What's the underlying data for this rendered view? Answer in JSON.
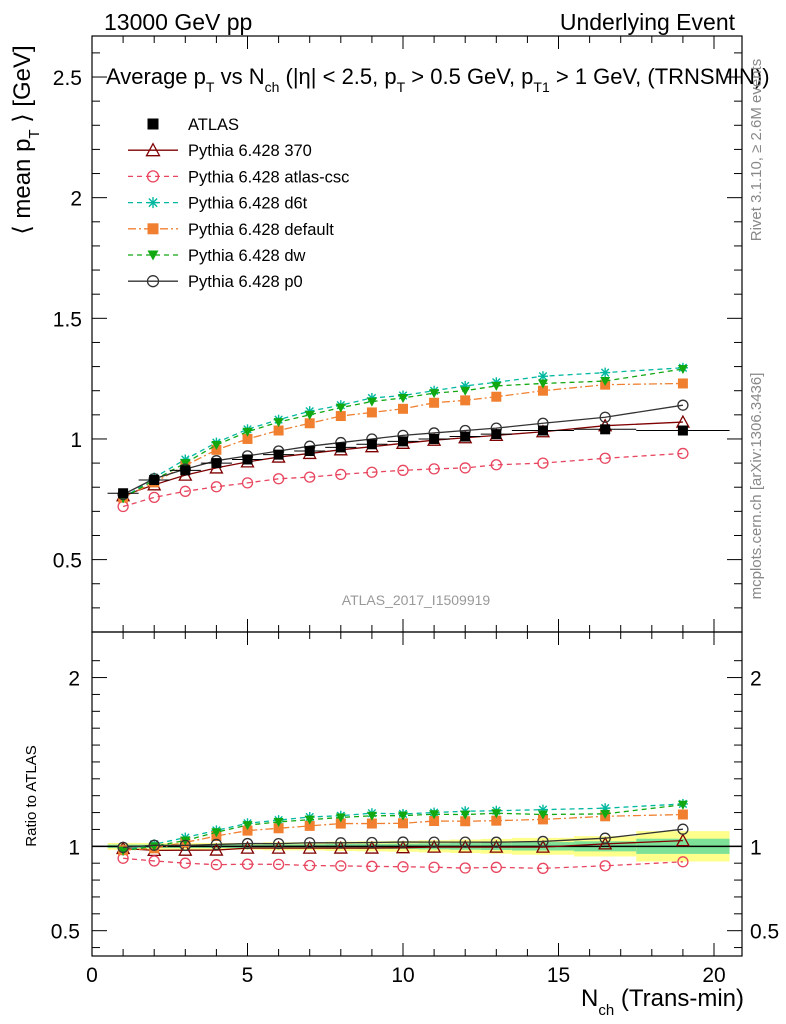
{
  "header": {
    "left": "13000 GeV pp",
    "right": "Underlying Event"
  },
  "side_labels": {
    "rivet": "Rivet 3.1.10, ≥ 2.6M events",
    "mcplots": "mcplots.cern.ch [arXiv:1306.3436]"
  },
  "chart_data": {
    "type": "line",
    "title": {
      "parts": [
        "Average p",
        "T",
        " vs N",
        "ch",
        " (|η| < 2.5, p",
        "T",
        " > 0.5 GeV, p",
        "T1",
        " > 1 GeV, (TRNSMIN))"
      ]
    },
    "watermark": "ATLAS_2017_I1509919",
    "ylabel": {
      "parts": [
        "⟨ mean p",
        "T",
        " ⟩ [GeV]"
      ]
    },
    "xlabel": {
      "parts": [
        "N",
        "ch",
        " (Trans-min)"
      ]
    },
    "ratio_ylabel": "Ratio to ATLAS",
    "xlim": [
      0,
      20.9
    ],
    "ylim": [
      0.2,
      2.67
    ],
    "ratio_ylim": [
      0.35,
      2.27
    ],
    "x_ticks": [
      0,
      5,
      10,
      15,
      20
    ],
    "x_tick_labels": [
      "0",
      "5",
      "10",
      "15",
      "20"
    ],
    "y_ticks": [
      0.5,
      1,
      1.5,
      2,
      2.5
    ],
    "y_tick_labels": [
      "0.5",
      "1",
      "1.5",
      "2",
      "2.5"
    ],
    "ratio_ticks": [
      0.5,
      1,
      2
    ],
    "ratio_tick_labels": [
      "0.5",
      "1",
      "2"
    ],
    "x": [
      1,
      2,
      3,
      4,
      5,
      6,
      7,
      8,
      9,
      10,
      11,
      12,
      13,
      14.5,
      16.5,
      19
    ],
    "x_err": [
      0.5,
      0.5,
      0.5,
      0.5,
      0.5,
      0.5,
      0.5,
      0.5,
      0.5,
      0.5,
      0.5,
      0.5,
      0.5,
      1,
      1,
      1.5
    ],
    "data": {
      "name": "ATLAS",
      "color": "#000000",
      "values": [
        0.775,
        0.83,
        0.87,
        0.9,
        0.915,
        0.935,
        0.95,
        0.965,
        0.978,
        0.99,
        1.0,
        1.01,
        1.02,
        1.035,
        1.04,
        1.035
      ],
      "ratio_band": [
        0.01,
        0.01,
        0.01,
        0.01,
        0.01,
        0.012,
        0.012,
        0.014,
        0.015,
        0.016,
        0.018,
        0.02,
        0.022,
        0.025,
        0.03,
        0.045
      ]
    },
    "series": [
      {
        "name": "Pythia 6.428 370",
        "color": "#7f0000",
        "dash": "",
        "marker": "triangle-open",
        "values": [
          0.765,
          0.81,
          0.85,
          0.88,
          0.905,
          0.925,
          0.94,
          0.955,
          0.968,
          0.982,
          0.995,
          1.005,
          1.015,
          1.03,
          1.055,
          1.07
        ]
      },
      {
        "name": "Pythia 6.428 atlas-csc",
        "color": "#e8455e",
        "dash": "5,4",
        "marker": "circle-open",
        "values": [
          0.72,
          0.758,
          0.783,
          0.802,
          0.818,
          0.835,
          0.842,
          0.853,
          0.862,
          0.87,
          0.876,
          0.88,
          0.893,
          0.9,
          0.92,
          0.94
        ]
      },
      {
        "name": "Pythia 6.428 d6t",
        "color": "#00b8a0",
        "dash": "5,4",
        "marker": "star",
        "values": [
          0.755,
          0.84,
          0.915,
          0.985,
          1.04,
          1.08,
          1.115,
          1.14,
          1.17,
          1.18,
          1.2,
          1.22,
          1.235,
          1.26,
          1.275,
          1.295
        ]
      },
      {
        "name": "Pythia 6.428 default",
        "color": "#f08030",
        "dash": "8,3,2,3",
        "marker": "square",
        "values": [
          0.757,
          0.82,
          0.89,
          0.955,
          1.0,
          1.035,
          1.065,
          1.095,
          1.11,
          1.125,
          1.15,
          1.16,
          1.175,
          1.2,
          1.225,
          1.23
        ]
      },
      {
        "name": "Pythia 6.428 dw",
        "color": "#11a811",
        "dash": "5,4",
        "marker": "triangle-down",
        "values": [
          0.755,
          0.83,
          0.9,
          0.975,
          1.03,
          1.07,
          1.1,
          1.13,
          1.155,
          1.17,
          1.19,
          1.2,
          1.22,
          1.23,
          1.24,
          1.29
        ]
      },
      {
        "name": "Pythia 6.428 p0",
        "color": "#333333",
        "dash": "",
        "marker": "circle-open",
        "values": [
          0.77,
          0.835,
          0.875,
          0.91,
          0.93,
          0.95,
          0.97,
          0.985,
          1.0,
          1.015,
          1.025,
          1.035,
          1.045,
          1.065,
          1.09,
          1.14
        ]
      }
    ],
    "legend_position": "top-left",
    "grid": false
  }
}
